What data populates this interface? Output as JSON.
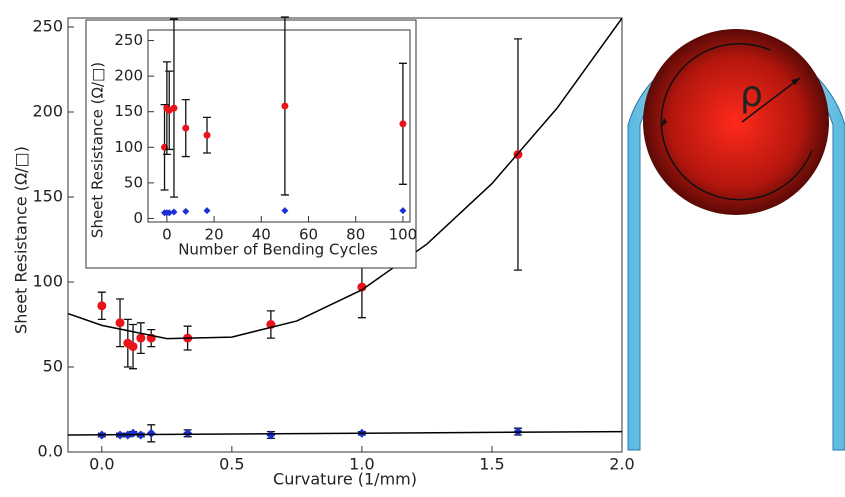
{
  "chart_data": [
    {
      "type": "scatter",
      "x_label": "Curvature (1/mm)",
      "y_label": "Sheet Resistance (Ω/□)",
      "xlim": [
        -0.13,
        2.0
      ],
      "ylim": [
        0,
        250
      ],
      "xticks": [
        {
          "value": 0,
          "label": "0.0"
        },
        0.5,
        {
          "value": 1,
          "label": "1.0"
        },
        1.5,
        {
          "value": 2,
          "label": "2.0"
        }
      ],
      "yticks": [
        {
          "value": 0,
          "label": "0.0"
        },
        50,
        100,
        150,
        200,
        250
      ],
      "series": [
        {
          "color": "#e8141a",
          "style": "points",
          "x": [
            0,
            0.07,
            0.1,
            0.12,
            0.15,
            0.19,
            0.33,
            0.65,
            1.0,
            1.6
          ],
          "values": [
            86,
            76,
            64,
            62,
            67,
            67,
            67,
            75,
            97,
            175
          ],
          "errors": [
            8,
            14,
            14,
            13,
            9,
            5,
            7,
            8,
            18,
            68
          ]
        },
        {
          "color": "#1a2fd6",
          "style": "points",
          "x": [
            0,
            0.07,
            0.1,
            0.12,
            0.15,
            0.19,
            0.33,
            0.65,
            1.0,
            1.6
          ],
          "values": [
            10,
            10,
            10,
            11,
            10,
            11,
            11,
            10,
            11,
            12
          ],
          "errors": [
            1,
            1,
            1,
            1,
            1,
            5,
            2,
            2,
            1,
            2
          ]
        },
        {
          "color": "#000000",
          "style": "line",
          "x": [
            -0.13,
            0,
            0.25,
            0.5,
            0.75,
            1.0,
            1.25,
            1.5,
            1.75,
            2.0
          ],
          "values": [
            81.4,
            74.5,
            66.7,
            67.6,
            77.1,
            95.4,
            122.3,
            157.9,
            202.2,
            255.2
          ]
        },
        {
          "color": "#000000",
          "style": "line",
          "x": [
            -0.13,
            2.0
          ],
          "values": [
            10,
            12
          ]
        }
      ]
    },
    {
      "type": "scatter",
      "x_label": "Number of Bending Cycles",
      "y_label": "Sheet Resistance (Ω/□)",
      "xlim": [
        -8,
        103
      ],
      "ylim": [
        -5,
        255
      ],
      "xticks": [
        0,
        20,
        40,
        60,
        80,
        100
      ],
      "yticks": [
        0,
        50,
        100,
        150,
        200,
        250
      ],
      "series": [
        {
          "color": "#e8141a",
          "style": "points",
          "x": [
            -1,
            0,
            1,
            3,
            8,
            17,
            50,
            100
          ],
          "values": [
            100,
            155,
            152,
            155,
            127,
            117,
            158,
            133
          ],
          "errors": [
            60,
            65,
            55,
            125,
            40,
            25,
            125,
            85
          ]
        },
        {
          "color": "#1a2fd6",
          "style": "points",
          "x": [
            -1,
            0,
            1,
            3,
            8,
            17,
            50,
            100
          ],
          "values": [
            8,
            8,
            8,
            9,
            10,
            11,
            11,
            11
          ]
        }
      ]
    }
  ],
  "illustration": {
    "label": "ρ"
  }
}
